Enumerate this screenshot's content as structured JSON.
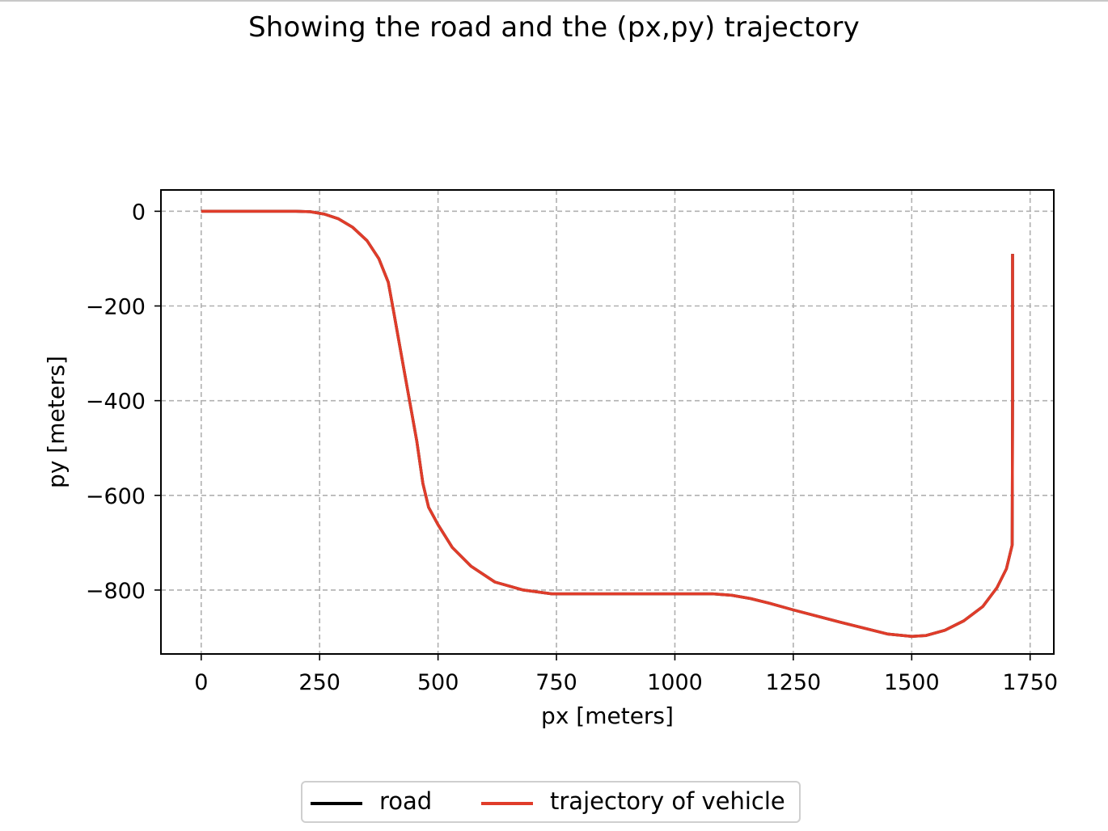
{
  "chart_data": {
    "type": "line",
    "title": "Showing the road and the (px,py) trajectory",
    "xlabel": "px [meters]",
    "ylabel": "py [meters]",
    "xlim": [
      -85,
      1800
    ],
    "ylim": [
      -935,
      45
    ],
    "xticks": [
      0,
      250,
      500,
      750,
      1000,
      1250,
      1500,
      1750
    ],
    "yticks": [
      0,
      -200,
      -400,
      -600,
      -800
    ],
    "xtick_labels": [
      "0",
      "250",
      "500",
      "750",
      "1000",
      "1250",
      "1500",
      "1750"
    ],
    "ytick_labels": [
      "0",
      "−200",
      "−400",
      "−600",
      "−800"
    ],
    "grid": true,
    "legend_position": "bottom-center, below axes",
    "series": [
      {
        "name": "road",
        "color": "#000000",
        "x": [
          0,
          200,
          230,
          260,
          290,
          320,
          350,
          375,
          395,
          405,
          430,
          455,
          468,
          480,
          500,
          530,
          570,
          620,
          680,
          740,
          800,
          900,
          1000,
          1080,
          1120,
          1160,
          1200,
          1250,
          1350,
          1450,
          1500,
          1530,
          1570,
          1610,
          1650,
          1680,
          1700,
          1712,
          1713,
          1713
        ],
        "y": [
          0,
          0,
          -1,
          -6,
          -16,
          -34,
          -62,
          -100,
          -150,
          -205,
          -345,
          -485,
          -575,
          -625,
          -662,
          -710,
          -750,
          -783,
          -800,
          -808,
          -808,
          -808,
          -808,
          -808,
          -811,
          -818,
          -828,
          -842,
          -868,
          -893,
          -898,
          -896,
          -885,
          -865,
          -835,
          -795,
          -755,
          -705,
          -400,
          -90
        ]
      },
      {
        "name": "trajectory of vehicle",
        "color": "#e03c2a",
        "x": [
          0,
          200,
          230,
          260,
          290,
          320,
          350,
          375,
          395,
          405,
          430,
          455,
          468,
          480,
          500,
          530,
          570,
          620,
          680,
          740,
          800,
          900,
          1000,
          1080,
          1120,
          1160,
          1200,
          1250,
          1350,
          1450,
          1500,
          1530,
          1570,
          1610,
          1650,
          1680,
          1700,
          1712,
          1713,
          1713
        ],
        "y": [
          0,
          0,
          -1,
          -6,
          -16,
          -34,
          -62,
          -100,
          -150,
          -205,
          -345,
          -485,
          -575,
          -625,
          -662,
          -710,
          -750,
          -783,
          -800,
          -808,
          -808,
          -808,
          -808,
          -808,
          -811,
          -818,
          -828,
          -842,
          -868,
          -893,
          -898,
          -896,
          -885,
          -865,
          -835,
          -795,
          -755,
          -705,
          -400,
          -90
        ]
      }
    ]
  }
}
